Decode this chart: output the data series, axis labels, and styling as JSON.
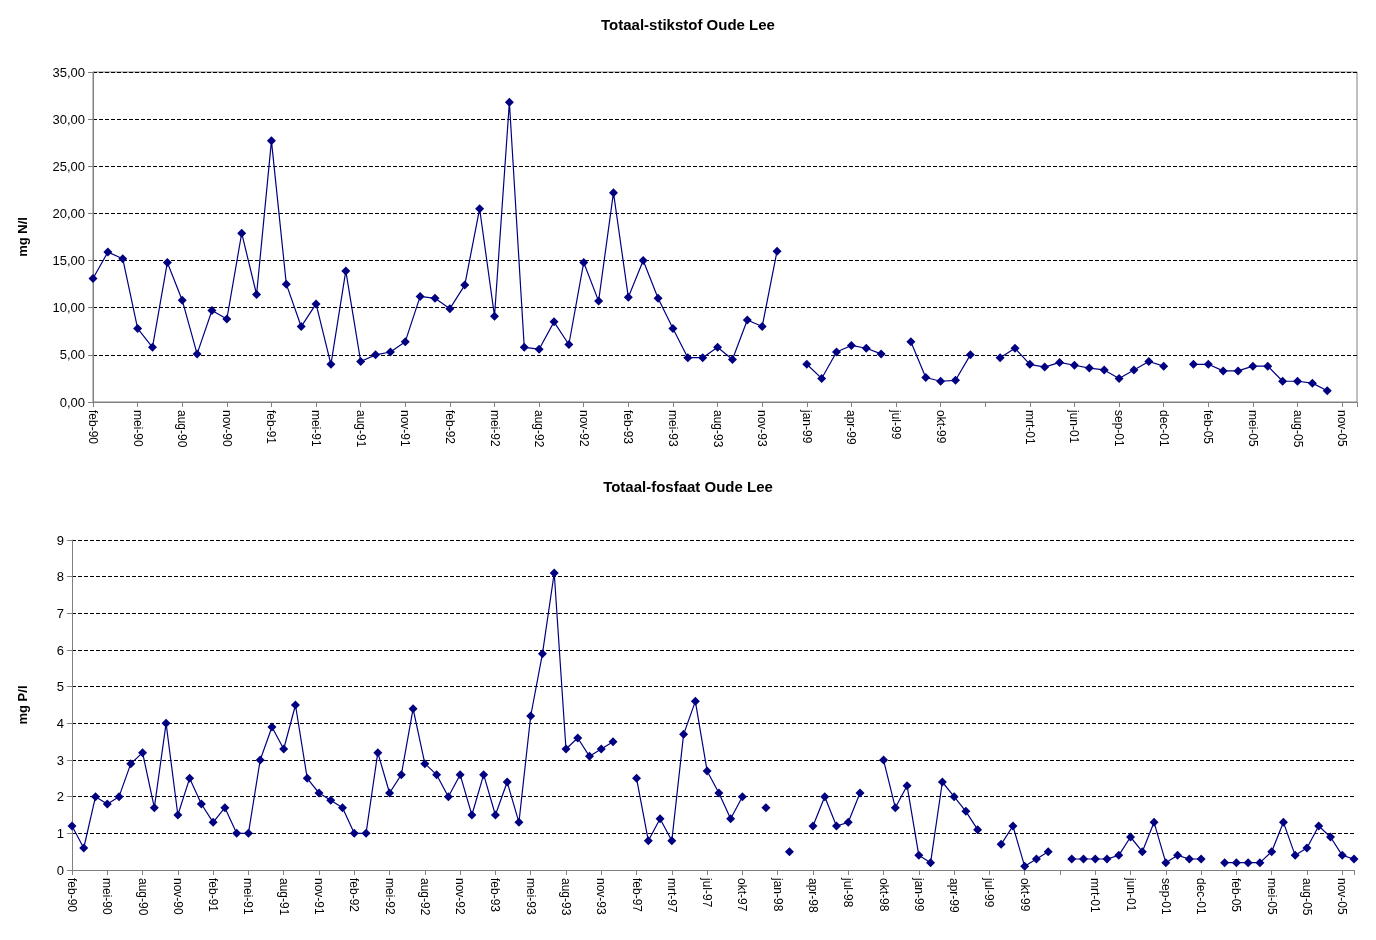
{
  "chart_data": [
    {
      "type": "line",
      "title": "Totaal-stikstof Oude Lee",
      "ylabel": "mg N/l",
      "categories": [
        "feb-90",
        null,
        null,
        "mei-90",
        null,
        null,
        "aug-90",
        null,
        null,
        "nov-90",
        null,
        null,
        "feb-91",
        null,
        null,
        "mei-91",
        null,
        null,
        "aug-91",
        null,
        null,
        "nov-91",
        null,
        null,
        "feb-92",
        null,
        null,
        "mei-92",
        null,
        null,
        "aug-92",
        null,
        null,
        "nov-92",
        null,
        null,
        "feb-93",
        null,
        null,
        "mei-93",
        null,
        null,
        "aug-93",
        null,
        null,
        "nov-93",
        null,
        null,
        "jan-99",
        null,
        null,
        "apr-99",
        null,
        null,
        "jul-99",
        null,
        null,
        "okt-99",
        null,
        null,
        null,
        null,
        null,
        "mrt-01",
        null,
        null,
        "jun-01",
        null,
        null,
        "sep-01",
        null,
        null,
        "dec-01",
        null,
        null,
        "feb-05",
        null,
        null,
        "mei-05",
        null,
        null,
        "aug-05",
        null,
        null,
        "nov-05",
        null
      ],
      "series": [
        {
          "color": "#000080",
          "values": [
            13.1,
            15.9,
            15.2,
            7.8,
            5.8,
            14.8,
            10.8,
            5.1,
            9.7,
            8.8,
            17.9,
            11.4,
            27.7,
            12.5,
            8.0,
            10.4,
            4.0,
            13.9,
            4.3,
            5.0,
            5.3,
            6.4,
            11.2,
            11.0,
            9.9,
            12.4,
            20.5,
            9.1,
            31.8,
            5.8,
            5.6,
            8.5,
            6.1,
            14.8,
            10.7,
            22.2,
            11.1,
            15.0,
            11.0,
            7.8,
            4.7,
            4.7,
            5.8,
            4.5,
            8.7,
            8.0,
            16.0,
            null,
            4.0,
            2.5,
            5.3,
            6.0,
            5.7,
            5.1,
            null,
            6.4,
            2.6,
            2.2,
            2.3,
            5.0,
            null,
            4.7,
            5.7,
            4.0,
            3.7,
            4.2,
            3.9,
            3.6,
            3.4,
            2.5,
            3.4,
            4.3,
            3.8,
            null,
            4.0,
            4.0,
            3.3,
            3.3,
            3.8,
            3.8,
            2.2,
            2.2,
            2.0,
            1.2,
            null,
            null
          ]
        }
      ],
      "ylim": [
        0,
        35
      ],
      "yticks": [
        {
          "value": 0,
          "label": "0,00"
        },
        {
          "value": 5,
          "label": "5,00"
        },
        {
          "value": 10,
          "label": "10,00"
        },
        {
          "value": 15,
          "label": "15,00"
        },
        {
          "value": 20,
          "label": "20,00"
        },
        {
          "value": 25,
          "label": "25,00"
        },
        {
          "value": 30,
          "label": "30,00"
        },
        {
          "value": 35,
          "label": "35,00"
        }
      ],
      "grid": "y",
      "marker": "diamond",
      "line_style": "solid"
    },
    {
      "type": "line",
      "title": "Totaal-fosfaat Oude Lee",
      "ylabel": "mg P/l",
      "categories": [
        "feb-90",
        null,
        null,
        "mei-90",
        null,
        null,
        "aug-90",
        null,
        null,
        "nov-90",
        null,
        null,
        "feb-91",
        null,
        null,
        "mei-91",
        null,
        null,
        "aug-91",
        null,
        null,
        "nov-91",
        null,
        null,
        "feb-92",
        null,
        null,
        "mei-92",
        null,
        null,
        "aug-92",
        null,
        null,
        "nov-92",
        null,
        null,
        "feb-93",
        null,
        null,
        "mei-93",
        null,
        null,
        "aug-93",
        null,
        null,
        "nov-93",
        null,
        null,
        "feb-97",
        null,
        null,
        "mrt-97",
        null,
        null,
        "jul-97",
        null,
        null,
        "okt-97",
        null,
        null,
        "jan-98",
        null,
        null,
        "apr-98",
        null,
        null,
        "jul-98",
        null,
        null,
        "okt-98",
        null,
        null,
        "jan-99",
        null,
        null,
        "apr-99",
        null,
        null,
        "jul-99",
        null,
        null,
        "okt-99",
        null,
        null,
        null,
        null,
        null,
        "mrt-01",
        null,
        null,
        "jun-01",
        null,
        null,
        "sep-01",
        null,
        null,
        "dec-01",
        null,
        null,
        "feb-05",
        null,
        null,
        "mei-05",
        null,
        null,
        "aug-05",
        null,
        null,
        "nov-05",
        null
      ],
      "series": [
        {
          "color": "#000080",
          "values": [
            1.2,
            0.6,
            2.0,
            1.8,
            2.0,
            2.9,
            3.2,
            1.7,
            4.0,
            1.5,
            2.5,
            1.8,
            1.3,
            1.7,
            1.0,
            1.0,
            3.0,
            3.9,
            3.3,
            4.5,
            2.5,
            2.1,
            1.9,
            1.7,
            1.0,
            1.0,
            3.2,
            2.1,
            2.6,
            4.4,
            2.9,
            2.6,
            2.0,
            2.6,
            1.5,
            2.6,
            1.5,
            2.4,
            1.3,
            4.2,
            5.9,
            8.1,
            3.3,
            3.6,
            3.1,
            3.3,
            3.5,
            null,
            2.5,
            0.8,
            1.4,
            0.8,
            3.7,
            4.6,
            2.7,
            2.1,
            1.4,
            2.0,
            null,
            1.7,
            null,
            0.5,
            null,
            1.2,
            2.0,
            1.2,
            1.3,
            2.1,
            null,
            3.0,
            1.7,
            2.3,
            0.4,
            0.2,
            2.4,
            2.0,
            1.6,
            1.1,
            null,
            0.7,
            1.2,
            0.1,
            0.3,
            0.5,
            null,
            0.3,
            0.3,
            0.3,
            0.3,
            0.4,
            0.9,
            0.5,
            1.3,
            0.2,
            0.4,
            0.3,
            0.3,
            null,
            0.2,
            0.2,
            0.2,
            0.2,
            0.5,
            1.3,
            0.4,
            0.6,
            1.2,
            0.9,
            0.4,
            0.3
          ]
        }
      ],
      "ylim": [
        0,
        9
      ],
      "yticks": [
        0,
        1,
        2,
        3,
        4,
        5,
        6,
        7,
        8,
        9
      ],
      "grid": "y",
      "marker": "diamond",
      "line_style": "solid"
    }
  ]
}
